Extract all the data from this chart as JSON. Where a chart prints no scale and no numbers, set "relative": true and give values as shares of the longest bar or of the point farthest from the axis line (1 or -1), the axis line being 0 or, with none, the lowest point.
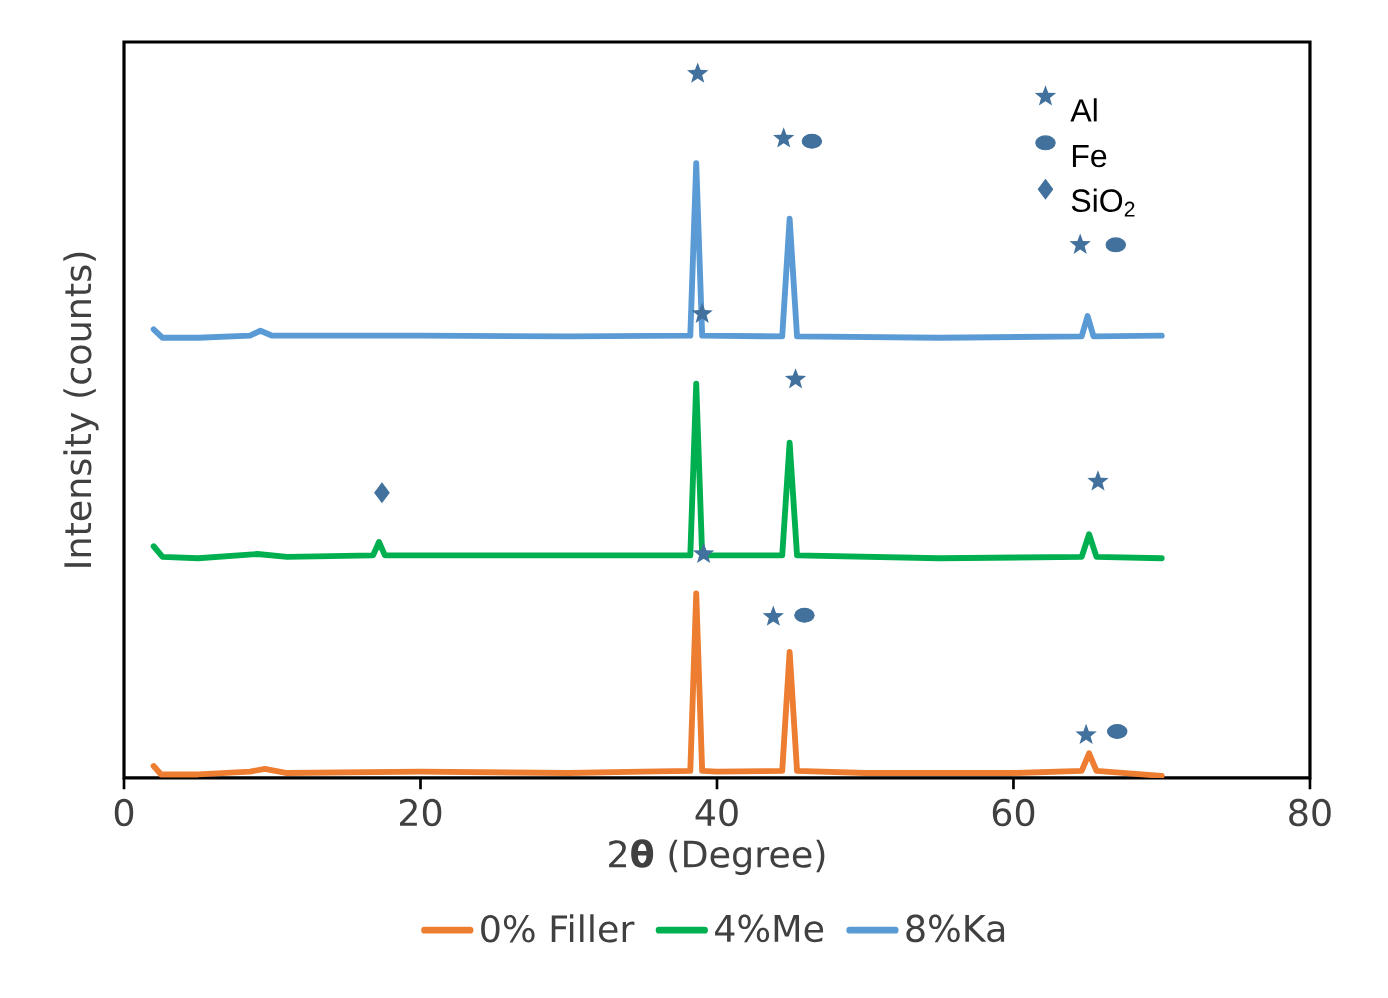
{
  "chart_data": {
    "type": "line",
    "xlabel": "2**θ** (Degree)",
    "ylabel": "Intensity (counts)",
    "relative": true,
    "xlim": [
      0,
      80
    ],
    "xticks": [
      0,
      20,
      40,
      60,
      80
    ],
    "legend": "bottom",
    "grid": false,
    "series": [
      {
        "name": "0% Filler",
        "color": "#ed7d31",
        "x": [
          2,
          2.5,
          5,
          8.5,
          9.5,
          11,
          20,
          30,
          35,
          38.2,
          38.6,
          39.0,
          40,
          44.4,
          44.9,
          45.4,
          50,
          60,
          64.6,
          65.1,
          65.6,
          70
        ],
        "values": [
          0.017,
          0.005,
          0.005,
          0.009,
          0.013,
          0.007,
          0.009,
          0.007,
          0.009,
          0.01,
          0.262,
          0.01,
          0.009,
          0.01,
          0.179,
          0.01,
          0.007,
          0.007,
          0.01,
          0.035,
          0.01,
          0.003
        ]
      },
      {
        "name": "4%Me",
        "color": "#00b050",
        "x": [
          2,
          2.6,
          5,
          9,
          11,
          16.8,
          17.2,
          17.6,
          25,
          35,
          38.2,
          38.6,
          39.0,
          44.4,
          44.9,
          45.4,
          55,
          64.6,
          65.1,
          65.6,
          70
        ],
        "values": [
          0.329,
          0.314,
          0.312,
          0.318,
          0.314,
          0.316,
          0.335,
          0.316,
          0.316,
          0.316,
          0.316,
          0.56,
          0.316,
          0.316,
          0.476,
          0.316,
          0.312,
          0.314,
          0.346,
          0.314,
          0.312
        ]
      },
      {
        "name": "8%Ka",
        "color": "#5b9bd5",
        "x": [
          2,
          2.6,
          5,
          8.5,
          9.2,
          10,
          20,
          30,
          38.2,
          38.6,
          39.0,
          44.4,
          44.9,
          45.4,
          55,
          64.6,
          65.0,
          65.4,
          70
        ],
        "values": [
          0.637,
          0.625,
          0.625,
          0.628,
          0.635,
          0.628,
          0.628,
          0.627,
          0.628,
          0.873,
          0.628,
          0.627,
          0.794,
          0.627,
          0.625,
          0.627,
          0.656,
          0.627,
          0.628
        ]
      },
      {
        "name": "Al",
        "type": "scatter",
        "marker": "star",
        "color": "#41719c",
        "x": [
          38.7,
          44.5,
          39.0,
          45.3,
          65.7,
          39.1,
          43.8,
          64.5,
          64.9
        ],
        "values": [
          1,
          0.908,
          0.659,
          0.566,
          0.421,
          0.318,
          0.229,
          0.757,
          0.061
        ]
      },
      {
        "name": "Fe",
        "type": "scatter",
        "marker": "circle",
        "color": "#41719c",
        "x": [
          46.4,
          66.9,
          45.9,
          67.0
        ],
        "values": [
          0.904,
          0.757,
          0.231,
          0.066
        ]
      },
      {
        "name": "SiO$_{2}$",
        "type": "scatter",
        "marker": "diamond",
        "color": "#41719c",
        "x": [
          17.4
        ],
        "values": [
          0.405
        ]
      }
    ]
  }
}
